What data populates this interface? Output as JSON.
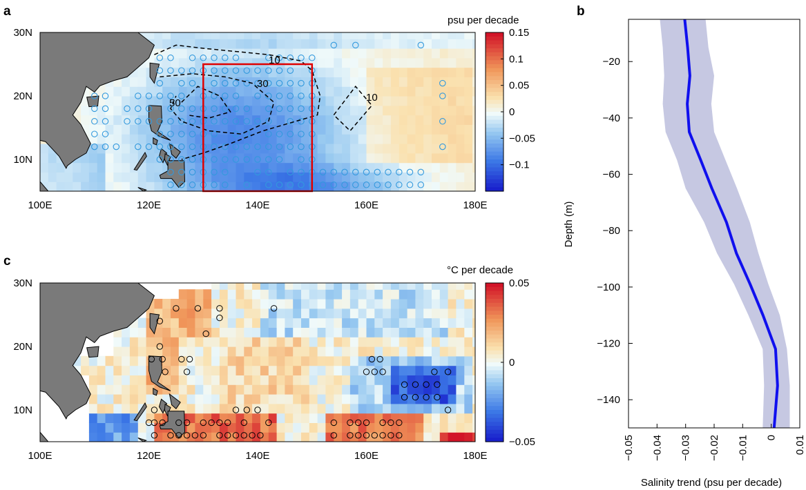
{
  "chart_data": [
    {
      "panel": "a",
      "type": "heatmap",
      "colorbar_title": "psu per decade",
      "colorbar_ticks": [
        "0.15",
        "0.1",
        "0.05",
        "0",
        "−0.05",
        "−0.1"
      ],
      "colorbar_values": [
        0.15,
        0.1,
        0.05,
        0,
        -0.05,
        -0.1
      ],
      "clim": [
        -0.15,
        0.15
      ],
      "x_ticks": [
        "100E",
        "120E",
        "140E",
        "160E",
        "180E"
      ],
      "y_ticks": [
        "30N",
        "20N",
        "10N"
      ],
      "xlim": [
        100,
        180
      ],
      "ylim": [
        5,
        30
      ],
      "box": {
        "lon": [
          130,
          150
        ],
        "lat": [
          5,
          25
        ],
        "color": "#e00000"
      },
      "contour_labels": [
        {
          "text": "10",
          "lon": 143,
          "lat": 27
        },
        {
          "text": "30",
          "lon": 140,
          "lat": 22.5
        },
        {
          "text": "50",
          "lon": 124.5,
          "lat": 20
        },
        {
          "text": "10",
          "lon": 160,
          "lat": 20.5
        }
      ]
    },
    {
      "panel": "b",
      "type": "line",
      "xlabel": "Salinity trend (psu per decade)",
      "ylabel": "Depth (m)",
      "x_ticks": [
        "−0.05",
        "−0.04",
        "−0.03",
        "−0.02",
        "−0.01",
        "0",
        "0.01"
      ],
      "y_ticks": [
        "−20",
        "−40",
        "−60",
        "−80",
        "−100",
        "−120",
        "−140"
      ],
      "xlim": [
        -0.05,
        0.01
      ],
      "ylim": [
        -150,
        -5
      ],
      "series": [
        {
          "depth": [
            -5,
            -15,
            -25,
            -35,
            -45,
            -55,
            -65,
            -77,
            -88,
            -99,
            -110,
            -122,
            -135,
            -150
          ],
          "mean": [
            -0.0303,
            -0.0293,
            -0.0285,
            -0.0294,
            -0.0287,
            -0.0247,
            -0.0208,
            -0.0157,
            -0.0122,
            -0.0074,
            -0.0029,
            0.0015,
            0.0022,
            0.001
          ],
          "lower": [
            -0.039,
            -0.038,
            -0.0375,
            -0.038,
            -0.037,
            -0.033,
            -0.03,
            -0.0235,
            -0.019,
            -0.013,
            -0.008,
            -0.003,
            -0.0025,
            -0.003
          ],
          "upper": [
            -0.023,
            -0.022,
            -0.02,
            -0.021,
            -0.02,
            -0.016,
            -0.012,
            -0.0075,
            -0.0045,
            -0.001,
            0.003,
            0.0055,
            0.0065,
            0.0065
          ],
          "line_color": "#1010ee",
          "band_color": "#c6c8e2"
        }
      ]
    },
    {
      "panel": "c",
      "type": "heatmap",
      "colorbar_title": "°C per decade",
      "colorbar_ticks": [
        "0.05",
        "0",
        "−0.05"
      ],
      "colorbar_values": [
        0.05,
        0,
        -0.05
      ],
      "clim": [
        -0.05,
        0.05
      ],
      "x_ticks": [
        "100E",
        "120E",
        "140E",
        "160E",
        "180E"
      ],
      "y_ticks": [
        "30N",
        "20N",
        "10N"
      ],
      "xlim": [
        100,
        180
      ],
      "ylim": [
        5,
        30
      ]
    }
  ],
  "panel_labels": {
    "a": "a",
    "b": "b",
    "c": "c"
  },
  "colors": {
    "land": "#7a7a7a",
    "ocean_blank": "#ffffff",
    "sig_a": "#3399dd",
    "sig_c": "#000000"
  }
}
